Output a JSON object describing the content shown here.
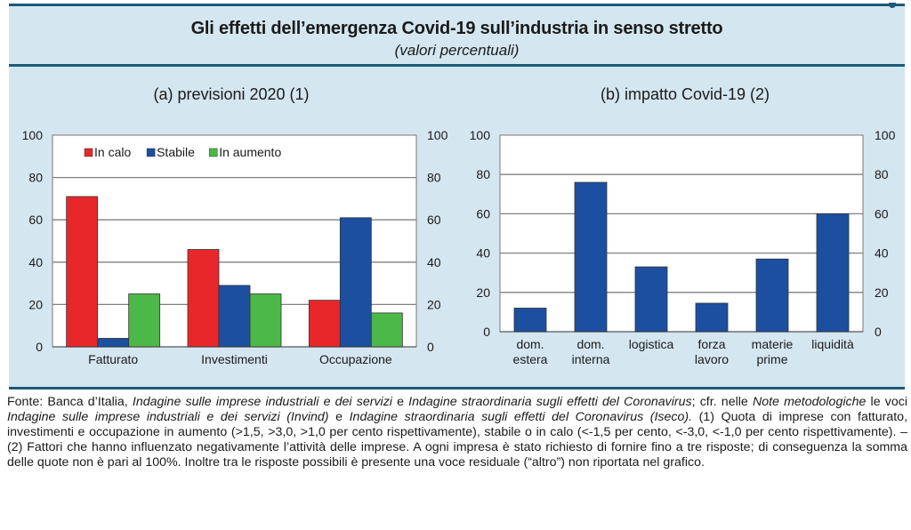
{
  "header": {
    "title": "Gli effetti dell’emergenza Covid-19 sull’industria in senso stretto",
    "subtitle": "(valori percentuali)"
  },
  "chart_data": [
    {
      "type": "bar",
      "title": "(a) previsioni 2020 (1)",
      "categories": [
        "Fatturato",
        "Investimenti",
        "Occupazione"
      ],
      "series": [
        {
          "name": "In calo",
          "color": "#e8272a",
          "values": [
            71,
            46,
            22
          ]
        },
        {
          "name": "Stabile",
          "color": "#1c4fa0",
          "values": [
            4,
            29,
            61
          ]
        },
        {
          "name": "In aumento",
          "color": "#4cb848",
          "values": [
            25,
            25,
            16
          ]
        }
      ],
      "ylim": [
        0,
        100
      ],
      "yticks": [
        0,
        20,
        40,
        60,
        80,
        100
      ],
      "secondary_yticks": [
        0,
        20,
        40,
        60,
        80,
        100
      ],
      "grid": true,
      "legend": "top-left",
      "xlabel": "",
      "ylabel": ""
    },
    {
      "type": "bar",
      "title": "(b) impatto Covid-19 (2)",
      "categories": [
        [
          "dom.",
          "estera"
        ],
        [
          "dom.",
          "interna"
        ],
        [
          "logistica"
        ],
        [
          "forza",
          "lavoro"
        ],
        [
          "materie",
          "prime"
        ],
        [
          "liquidità"
        ]
      ],
      "series": [
        {
          "name": "Impatto",
          "color": "#1c4fa0",
          "values": [
            12,
            76,
            33,
            14.5,
            37,
            60
          ]
        }
      ],
      "ylim": [
        0,
        100
      ],
      "yticks": [
        0,
        20,
        40,
        60,
        80,
        100
      ],
      "secondary_yticks": [
        0,
        20,
        40,
        60,
        80,
        100
      ],
      "grid": true,
      "legend": "none",
      "xlabel": "",
      "ylabel": ""
    }
  ],
  "footer": {
    "segments": [
      {
        "t": "Fonte: Banca d’Italia, ",
        "i": false
      },
      {
        "t": "Indagine sulle imprese industriali e dei servizi",
        "i": true
      },
      {
        "t": " e ",
        "i": false
      },
      {
        "t": "Indagine straordinaria sugli effetti del Coronavirus",
        "i": true
      },
      {
        "t": "; cfr. nelle ",
        "i": false
      },
      {
        "t": "Note metodologiche",
        "i": true
      },
      {
        "t": " le voci ",
        "i": false
      },
      {
        "t": "Indagine sulle imprese industriali e dei servizi (Invind)",
        "i": true
      },
      {
        "t": " e ",
        "i": false
      },
      {
        "t": "Indagine straordinaria sugli effetti del Coronavirus (Iseco).",
        "i": true
      },
      {
        "t": " (1) Quota di imprese con fatturato, investimenti e occupazione in aumento (>1,5, >3,0, >1,0 per cento rispettivamente), stabile o in calo (<-1,5 per cento, <-3,0, <-1,0 per cento rispettivamente). – (2) Fattori che hanno influenzato negativamente l’attività delle imprese. A ogni impresa è stato richiesto di fornire fino a tre risposte; di conseguenza la somma delle quote non è pari al 100%. Inoltre tra le risposte possibili è presente una voce residuale (“altro”) non riportata nel grafico.",
        "i": false
      }
    ]
  }
}
